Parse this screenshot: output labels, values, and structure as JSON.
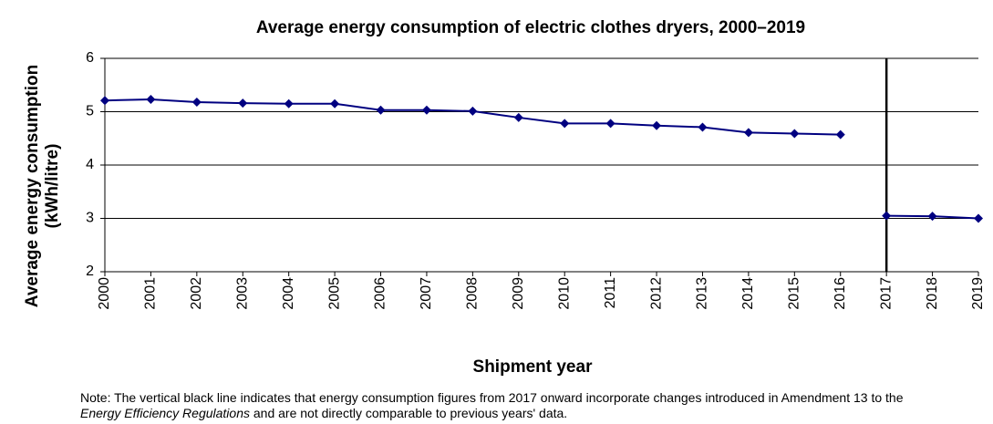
{
  "chart_data": {
    "type": "line",
    "title": "Average energy consumption of electric clothes dryers, 2000–2019",
    "xlabel": "Shipment year",
    "ylabel": [
      "Average energy consumption",
      "(kWh/litre)"
    ],
    "x": [
      2000,
      2001,
      2002,
      2003,
      2004,
      2005,
      2006,
      2007,
      2008,
      2009,
      2010,
      2011,
      2012,
      2013,
      2014,
      2015,
      2016,
      2017,
      2018,
      2019
    ],
    "series": [
      {
        "color": "#000080",
        "values": [
          5.21,
          5.23,
          5.18,
          5.16,
          5.15,
          5.15,
          5.03,
          5.03,
          5.01,
          4.89,
          4.78,
          4.78,
          4.74,
          4.71,
          4.61,
          4.59,
          4.57,
          null,
          null,
          null
        ]
      },
      {
        "color": "#000080",
        "values": [
          null,
          null,
          null,
          null,
          null,
          null,
          null,
          null,
          null,
          null,
          null,
          null,
          null,
          null,
          null,
          null,
          null,
          3.05,
          3.04,
          3.0
        ]
      }
    ],
    "xlim": [
      2000,
      2019
    ],
    "xticks": [
      2000,
      2001,
      2002,
      2003,
      2004,
      2005,
      2006,
      2007,
      2008,
      2009,
      2010,
      2011,
      2012,
      2013,
      2014,
      2015,
      2016,
      2017,
      2018,
      2019
    ],
    "ylim": [
      2,
      6
    ],
    "yticks": [
      2,
      3,
      4,
      5,
      6
    ],
    "grid": true,
    "vline": 2017,
    "note": [
      "Note: The vertical black line indicates that energy consumption figures from 2017 onward incorporate changes introduced in Amendment  13 to the ",
      "Energy Efficiency Regulations",
      " and are not directly comparable to previous years' data."
    ]
  }
}
